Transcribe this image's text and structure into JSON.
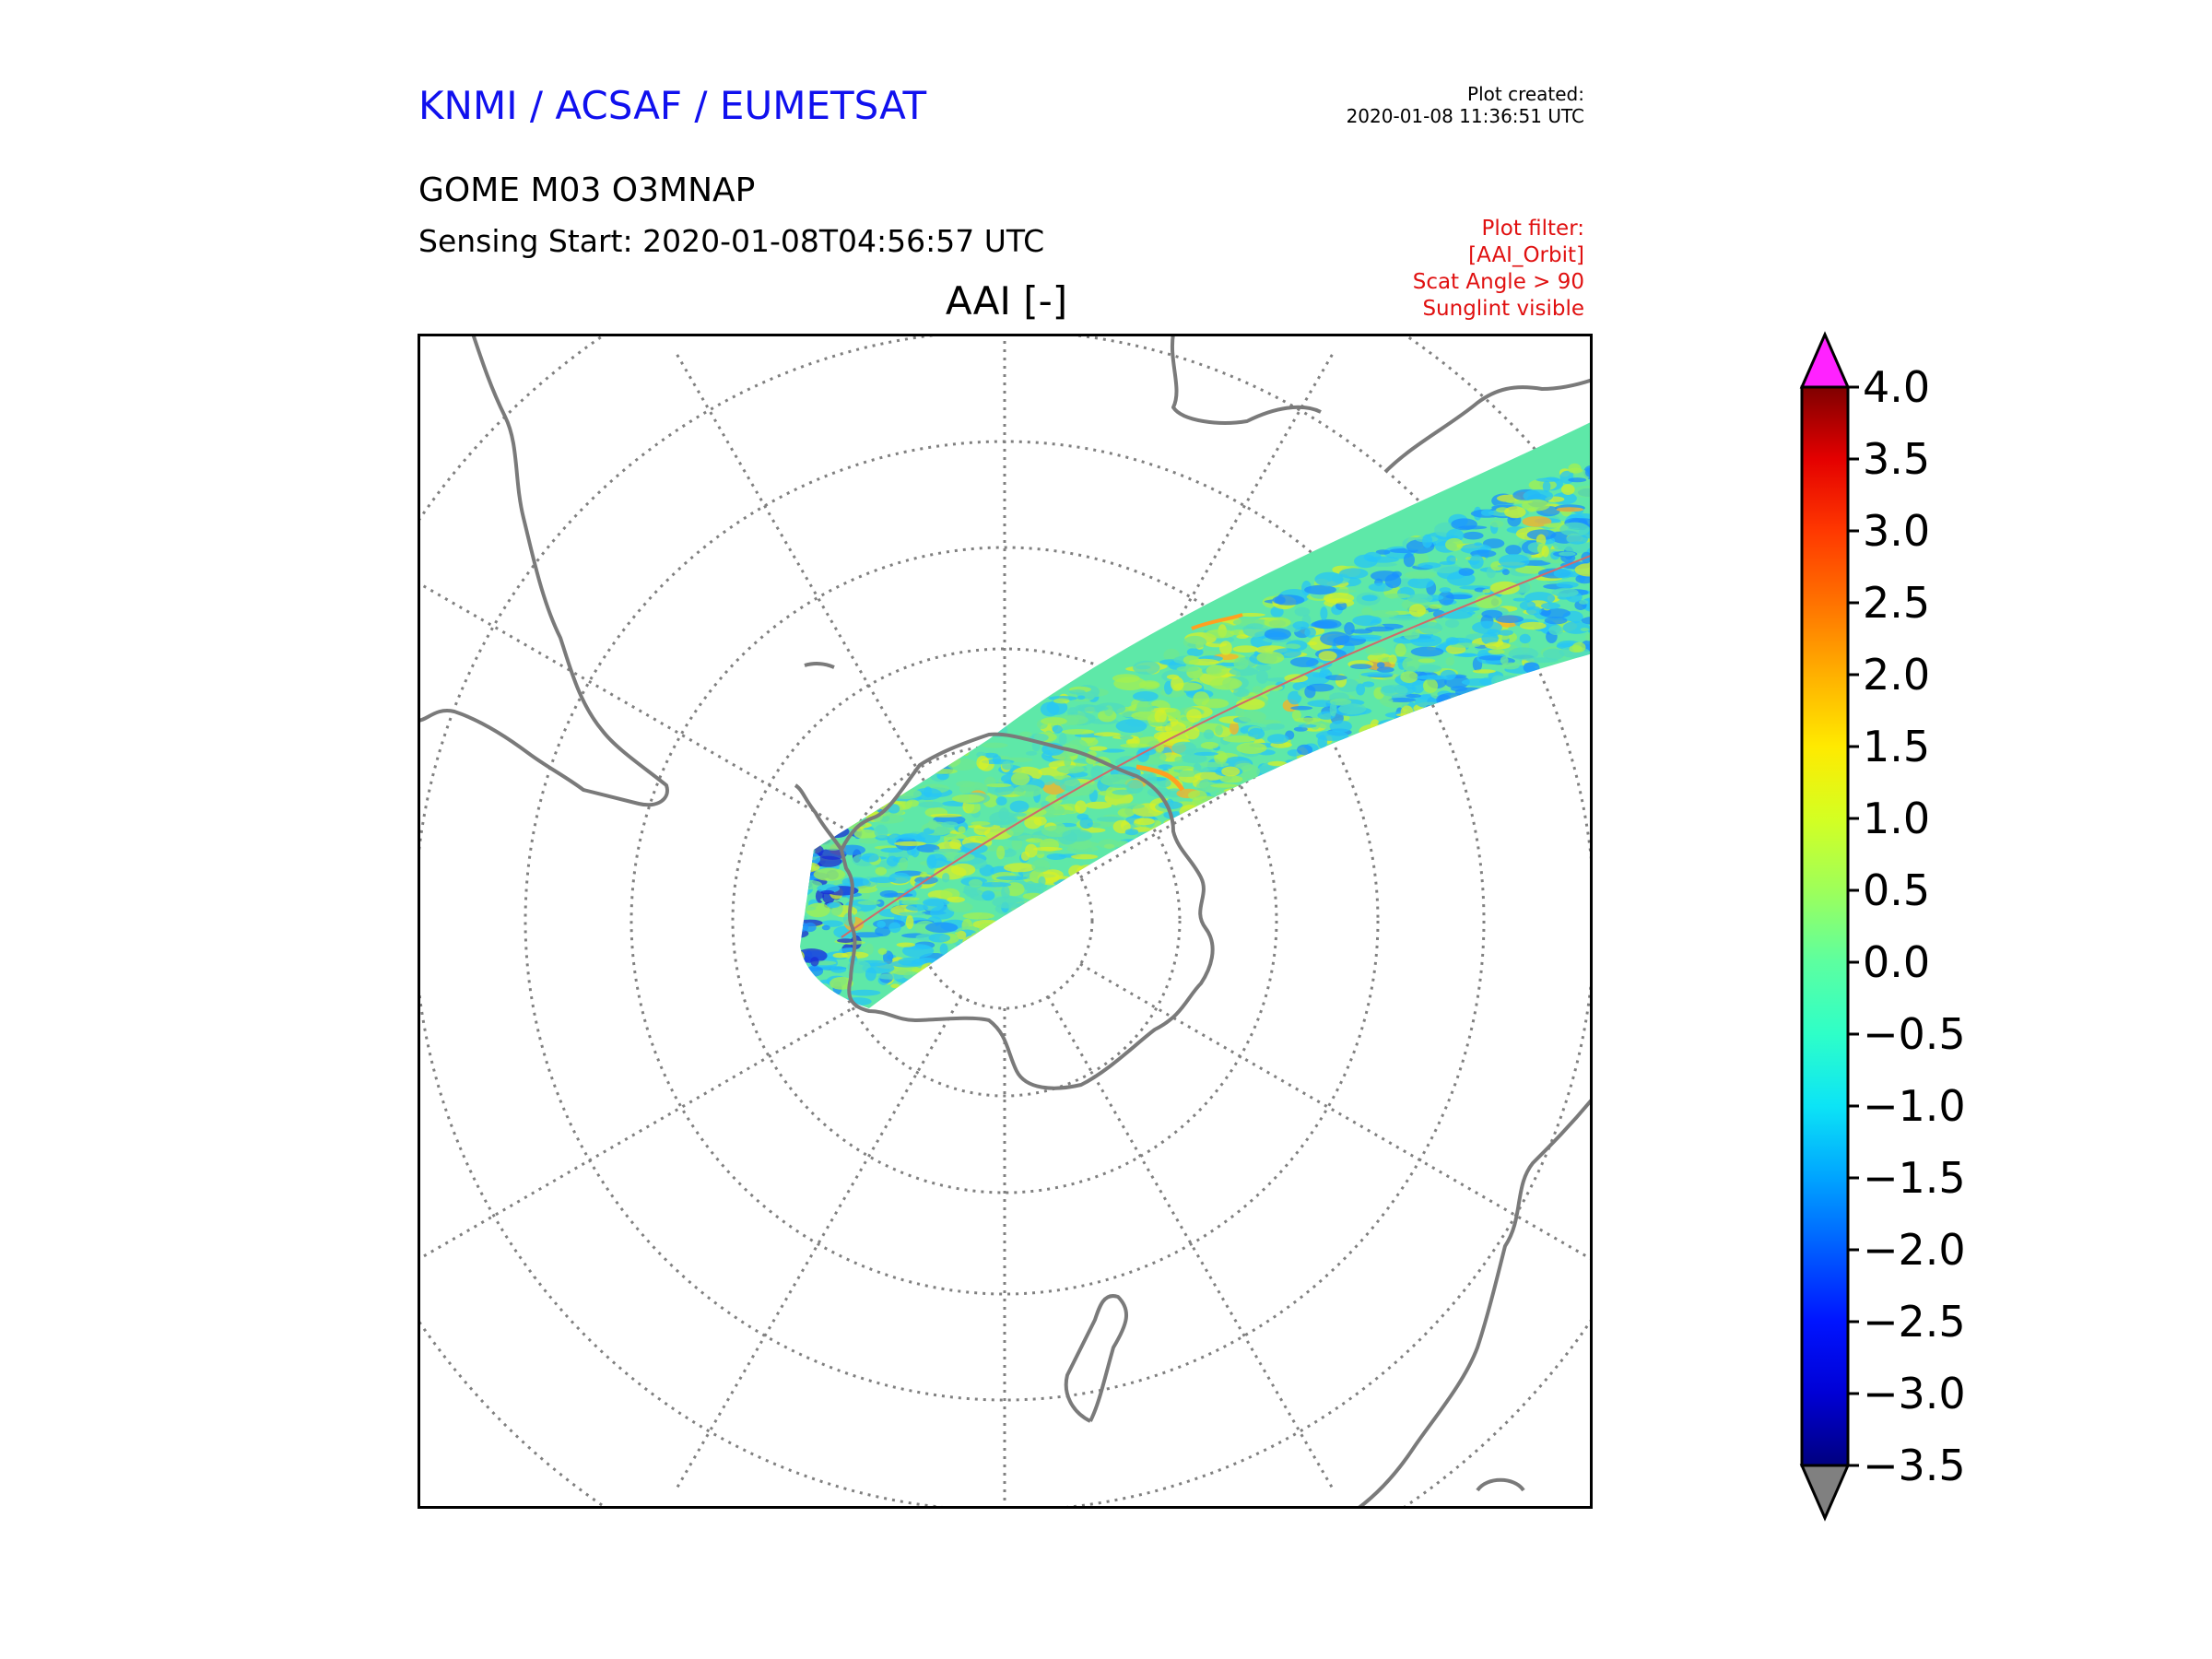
{
  "header": {
    "organization": "KNMI / ACSAF / EUMETSAT",
    "plot_created_label": "Plot created:",
    "plot_created_value": "2020-01-08 11:36:51 UTC",
    "product": "GOME M03 O3MNAP",
    "sensing_start": "Sensing Start: 2020-01-08T04:56:57 UTC",
    "plot_filter": [
      "Plot filter:",
      "[AAI_Orbit]",
      "Scat Angle > 90",
      "Sunglint visible"
    ],
    "plot_title": "AAI [-]"
  },
  "map": {
    "projection": "south-polar-stereographic",
    "graticule": "dotted",
    "coastline_color": "#7a7a7a",
    "swath_colors": [
      "#4fdcc0",
      "#6fe890",
      "#a4f050",
      "#d6f028",
      "#27c6f6",
      "#1a90ff",
      "#ffb020",
      "#1a2cd8"
    ]
  },
  "colorbar": {
    "ticks": [
      "4.0",
      "3.5",
      "3.0",
      "2.5",
      "2.0",
      "1.5",
      "1.0",
      "0.5",
      "0.0",
      "−0.5",
      "−1.0",
      "−1.5",
      "−2.0",
      "−2.5",
      "−3.0",
      "−3.5"
    ],
    "min": -3.5,
    "max": 4.0,
    "over_color": "#ff22ff",
    "under_color": "#808080",
    "stops": [
      {
        "v": -3.5,
        "c": "#00007f"
      },
      {
        "v": -3.0,
        "c": "#0000d5"
      },
      {
        "v": -2.5,
        "c": "#0014ff"
      },
      {
        "v": -2.0,
        "c": "#005cff"
      },
      {
        "v": -1.5,
        "c": "#00a4ff"
      },
      {
        "v": -1.0,
        "c": "#0ce4f6"
      },
      {
        "v": -0.5,
        "c": "#2effc8"
      },
      {
        "v": 0.0,
        "c": "#5cffa0"
      },
      {
        "v": 0.5,
        "c": "#9eff5a"
      },
      {
        "v": 1.0,
        "c": "#d4ff22"
      },
      {
        "v": 1.5,
        "c": "#ffea00"
      },
      {
        "v": 2.0,
        "c": "#ffb000"
      },
      {
        "v": 2.5,
        "c": "#ff7200"
      },
      {
        "v": 3.0,
        "c": "#ff3800"
      },
      {
        "v": 3.5,
        "c": "#e40000"
      },
      {
        "v": 4.0,
        "c": "#7f0000"
      }
    ]
  }
}
